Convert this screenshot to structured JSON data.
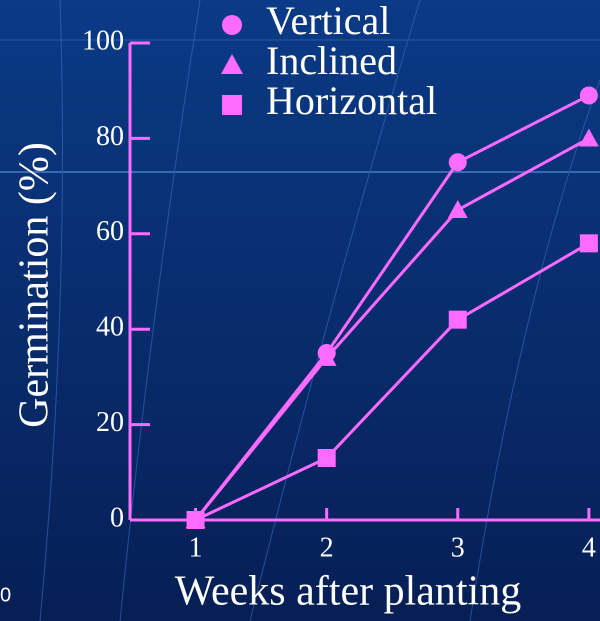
{
  "chart_data": {
    "type": "line",
    "x_label": "Weeks after planting",
    "y_label": "Germination (%)",
    "x": [
      1,
      2,
      3,
      4
    ],
    "series": [
      {
        "name": "Vertical",
        "color": "#ff6bff",
        "marker": "circle",
        "values": [
          0,
          35,
          75,
          89
        ]
      },
      {
        "name": "Inclined",
        "color": "#ff6bff",
        "marker": "triangle",
        "values": [
          0,
          34,
          65,
          80
        ]
      },
      {
        "name": "Horizontal",
        "color": "#ff6bff",
        "marker": "square",
        "values": [
          0,
          13,
          42,
          58
        ]
      }
    ],
    "xlim": [
      0.5,
      4.1
    ],
    "xticks": [
      1,
      2,
      3,
      4
    ],
    "ylim": [
      0,
      100
    ],
    "yticks": [
      0,
      20,
      40,
      60,
      80,
      100
    ],
    "axis_color": "#ff6bff",
    "footer": "0"
  }
}
